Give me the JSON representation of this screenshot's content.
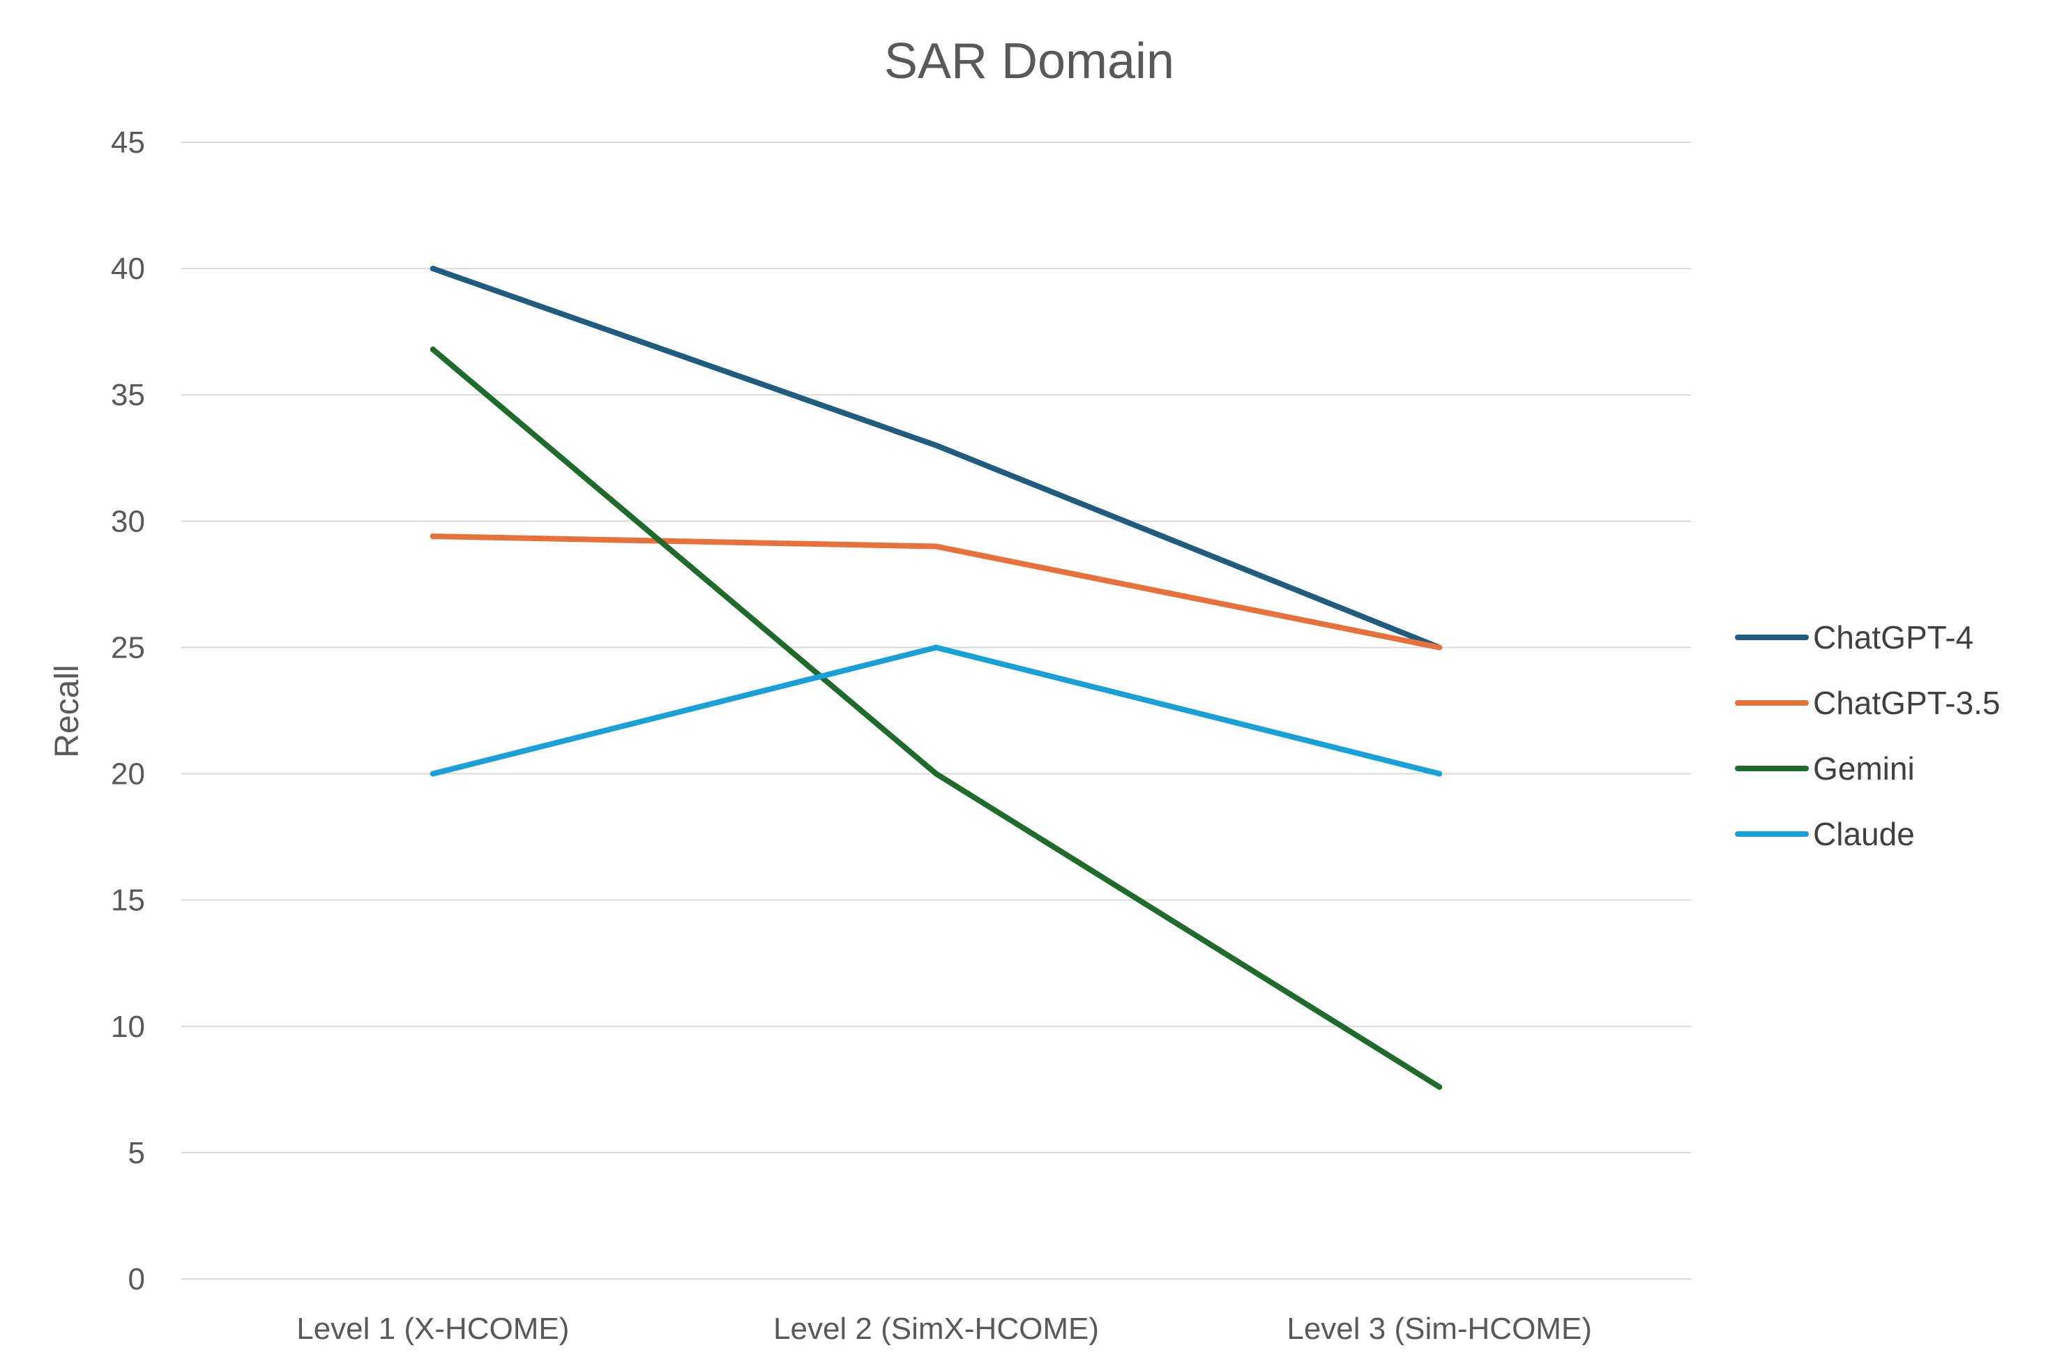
{
  "chart_data": {
    "type": "line",
    "title": "SAR Domain",
    "xlabel": "",
    "ylabel": "Recall",
    "ylim": [
      0,
      45
    ],
    "yticks": [
      0,
      5,
      10,
      15,
      20,
      25,
      30,
      35,
      40,
      45
    ],
    "categories": [
      "Level 1 (X-HCOME)",
      "Level 2 (SimX-HCOME)",
      "Level 3 (Sim-HCOME)"
    ],
    "grid": true,
    "legend_position": "right",
    "series": [
      {
        "name": "ChatGPT-4",
        "color": "#1f5c80",
        "values": [
          40,
          33,
          25
        ]
      },
      {
        "name": "ChatGPT-3.5",
        "color": "#e8703a",
        "values": [
          29.4,
          29,
          25
        ]
      },
      {
        "name": "Gemini",
        "color": "#1e6b2a",
        "values": [
          36.8,
          20,
          7.6
        ]
      },
      {
        "name": "Claude",
        "color": "#1aa0d8",
        "values": [
          20,
          25,
          20
        ]
      }
    ]
  }
}
